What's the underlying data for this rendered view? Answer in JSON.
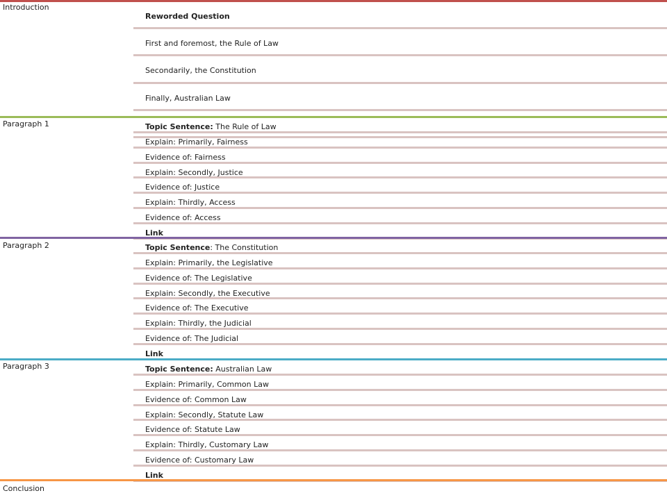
{
  "colors": {
    "introduction": "#c0504d",
    "paragraph_1": "#9bbb59",
    "paragraph_2": "#8064a2",
    "paragraph_3": "#4bacc6",
    "conclusion": "#f79646",
    "row_separator": "#d9c3c1"
  },
  "sections": [
    {
      "label": "Introduction",
      "rows": [
        {
          "bold": "Reworded Question",
          "text": ""
        },
        {
          "bold": "",
          "text": "First and foremost, the Rule of Law"
        },
        {
          "bold": "",
          "text": "Secondarily, the Constitution"
        },
        {
          "bold": "",
          "text": "Finally, Australian Law"
        },
        {
          "bold": "",
          "text": ""
        }
      ]
    },
    {
      "label": "Paragraph 1",
      "rows": [
        {
          "bold": "Topic Sentence:",
          "text": " The Rule of Law"
        },
        {
          "bold": "",
          "text": "Explain: Primarily, Fairness"
        },
        {
          "bold": "",
          "text": "Evidence of: Fairness"
        },
        {
          "bold": "",
          "text": "Explain: Secondly, Justice"
        },
        {
          "bold": "",
          "text": "Evidence of: Justice"
        },
        {
          "bold": "",
          "text": "Explain: Thirdly, Access"
        },
        {
          "bold": "",
          "text": "Evidence of: Access"
        },
        {
          "bold": "Link",
          "text": ""
        }
      ]
    },
    {
      "label": "Paragraph 2",
      "rows": [
        {
          "bold": "Topic Sentence",
          "text": ": The Constitution"
        },
        {
          "bold": "",
          "text": "Explain: Primarily, the Legislative"
        },
        {
          "bold": "",
          "text": "Evidence of: The Legislative"
        },
        {
          "bold": "",
          "text": "Explain: Secondly, the Executive"
        },
        {
          "bold": "",
          "text": "Evidence of: The Executive"
        },
        {
          "bold": "",
          "text": "Explain: Thirdly, the Judicial"
        },
        {
          "bold": "",
          "text": "Evidence of: The Judicial"
        },
        {
          "bold": "Link",
          "text": ""
        }
      ]
    },
    {
      "label": "Paragraph 3",
      "rows": [
        {
          "bold": "Topic Sentence:",
          "text": " Australian Law"
        },
        {
          "bold": "",
          "text": "Explain: Primarily, Common Law"
        },
        {
          "bold": "",
          "text": "Evidence of: Common Law"
        },
        {
          "bold": "",
          "text": "Explain: Secondly, Statute Law"
        },
        {
          "bold": "",
          "text": "Evidence of: Statute Law"
        },
        {
          "bold": "",
          "text": "Explain: Thirdly, Customary Law"
        },
        {
          "bold": "",
          "text": "Evidence of: Customary Law"
        },
        {
          "bold": "Link",
          "text": ""
        }
      ]
    },
    {
      "label": "Conclusion",
      "rows": []
    }
  ]
}
